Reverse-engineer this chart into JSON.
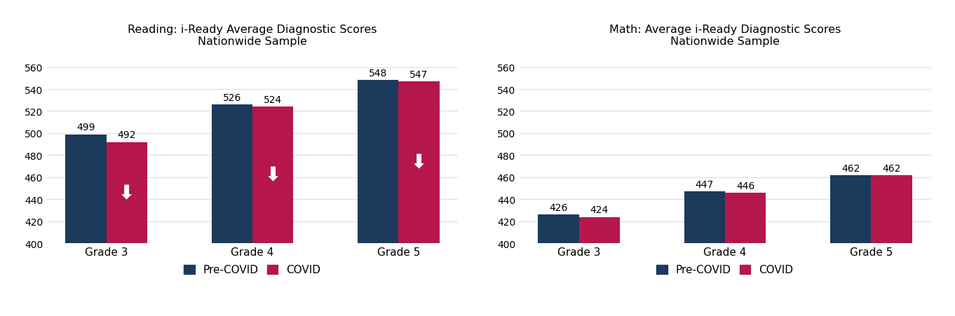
{
  "reading": {
    "title": "Reading: i-Ready Average Diagnostic Scores\nNationwide Sample",
    "categories": [
      "Grade 3",
      "Grade 4",
      "Grade 5"
    ],
    "pre_covid": [
      499,
      526,
      548
    ],
    "covid": [
      492,
      524,
      547
    ],
    "ylim": [
      400,
      570
    ],
    "yticks": [
      400,
      420,
      440,
      460,
      480,
      500,
      520,
      540,
      560
    ],
    "show_arrows": true
  },
  "math": {
    "title": "Math: Average i-Ready Diagnostic Scores\nNationwide Sample",
    "categories": [
      "Grade 3",
      "Grade 4",
      "Grade 5"
    ],
    "pre_covid": [
      426,
      447,
      462
    ],
    "covid": [
      424,
      446,
      462
    ],
    "ylim": [
      400,
      570
    ],
    "yticks": [
      400,
      420,
      440,
      460,
      480,
      500,
      520,
      540,
      560
    ],
    "show_arrows": false
  },
  "pre_covid_color": "#1B3A5C",
  "covid_color": "#B5174B",
  "bg_color": "#FFFFFF",
  "grid_color": "#DDDDDD",
  "legend_labels": [
    "Pre-COVID",
    "COVID"
  ],
  "bar_width": 0.28,
  "title_fontsize": 11.5,
  "tick_fontsize": 10,
  "label_fontsize": 11,
  "value_fontsize": 10
}
